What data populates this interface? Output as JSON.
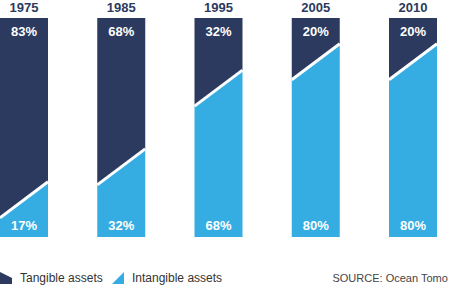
{
  "chart_data": {
    "type": "bar",
    "stacked": true,
    "categories": [
      "1975",
      "1985",
      "1995",
      "2005",
      "2010"
    ],
    "series": [
      {
        "name": "Tangible assets",
        "color": "#2b3a5e",
        "values": [
          83,
          68,
          32,
          20,
          20
        ],
        "value_labels": [
          "83%",
          "68%",
          "32%",
          "20%",
          "20%"
        ]
      },
      {
        "name": "Intangible assets",
        "color": "#35ade2",
        "values": [
          17,
          32,
          68,
          80,
          80
        ],
        "value_labels": [
          "17%",
          "32%",
          "68%",
          "80%",
          "80%"
        ]
      }
    ],
    "ylim": [
      0,
      100
    ],
    "data_labels": true,
    "tick_labels": "x",
    "legend": "bottom left",
    "annotations": [
      "SOURCE: Ocean Tomo"
    ]
  }
}
